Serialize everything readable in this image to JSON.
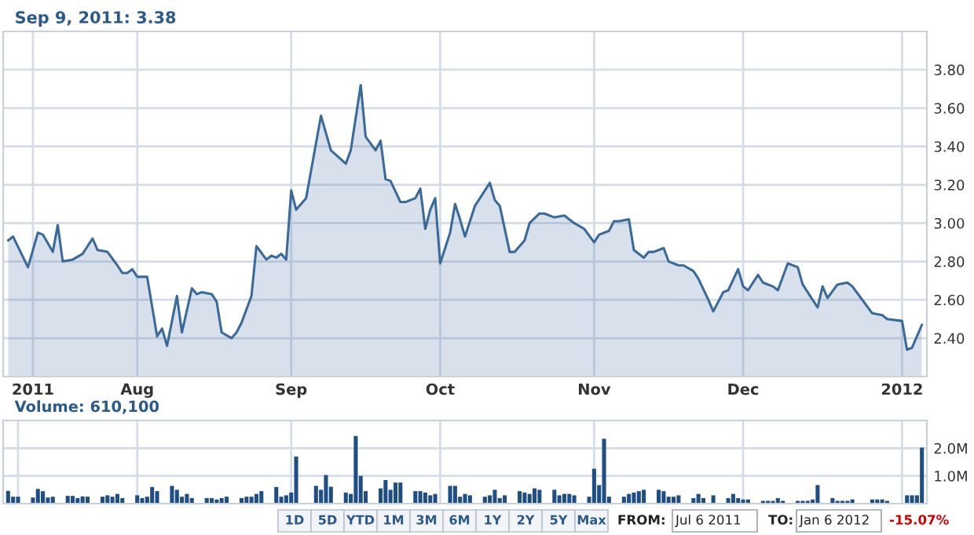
{
  "chart_data": [
    {
      "type": "area",
      "annotations": [
        "Sep 9, 2011: 3.38"
      ],
      "series": [
        {
          "color": "#3a6a9a",
          "x": [
            "2011-07-06",
            "2011-07-07",
            "2011-07-10",
            "2011-07-12",
            "2011-07-13",
            "2011-07-15",
            "2011-07-16",
            "2011-07-17",
            "2011-07-19",
            "2011-07-21",
            "2011-07-23",
            "2011-07-24",
            "2011-07-26",
            "2011-07-28",
            "2011-07-29",
            "2011-07-30",
            "2011-07-31",
            "2011-08-01",
            "2011-08-03",
            "2011-08-05",
            "2011-08-06",
            "2011-08-07",
            "2011-08-09",
            "2011-08-10",
            "2011-08-12",
            "2011-08-13",
            "2011-08-14",
            "2011-08-16",
            "2011-08-17",
            "2011-08-18",
            "2011-08-20",
            "2011-08-21",
            "2011-08-22",
            "2011-08-24",
            "2011-08-25",
            "2011-08-27",
            "2011-08-28",
            "2011-08-29",
            "2011-08-30",
            "2011-08-31",
            "2011-09-01",
            "2011-09-02",
            "2011-09-04",
            "2011-09-07",
            "2011-09-09",
            "2011-09-12",
            "2011-09-13",
            "2011-09-15",
            "2011-09-16",
            "2011-09-18",
            "2011-09-19",
            "2011-09-20",
            "2011-09-21",
            "2011-09-23",
            "2011-09-24",
            "2011-09-26",
            "2011-09-27",
            "2011-09-28",
            "2011-09-29",
            "2011-09-30",
            "2011-10-01",
            "2011-10-03",
            "2011-10-04",
            "2011-10-05",
            "2011-10-06",
            "2011-10-08",
            "2011-10-11",
            "2011-10-12",
            "2011-10-13",
            "2011-10-15",
            "2011-10-16",
            "2011-10-18",
            "2011-10-19",
            "2011-10-21",
            "2011-10-22",
            "2011-10-24",
            "2011-10-26",
            "2011-10-28",
            "2011-10-30",
            "2011-11-01",
            "2011-11-02",
            "2011-11-04",
            "2011-11-05",
            "2011-11-06",
            "2011-11-08",
            "2011-11-09",
            "2011-11-11",
            "2011-11-12",
            "2011-11-13",
            "2011-11-15",
            "2011-11-16",
            "2011-11-18",
            "2011-11-19",
            "2011-11-21",
            "2011-11-22",
            "2011-11-24",
            "2011-11-25",
            "2011-11-27",
            "2011-11-28",
            "2011-11-30",
            "2011-12-01",
            "2011-12-02",
            "2011-12-04",
            "2011-12-05",
            "2011-12-07",
            "2011-12-08",
            "2011-12-10",
            "2011-12-12",
            "2011-12-13",
            "2011-12-15",
            "2011-12-16",
            "2011-12-17",
            "2011-12-18",
            "2011-12-20",
            "2011-12-22",
            "2011-12-23",
            "2011-12-25",
            "2011-12-27",
            "2011-12-29",
            "2011-12-30",
            "2012-01-02",
            "2012-01-03",
            "2012-01-04",
            "2012-01-06"
          ],
          "values": [
            2.91,
            2.93,
            2.77,
            2.95,
            2.94,
            2.85,
            2.99,
            2.8,
            2.81,
            2.84,
            2.92,
            2.86,
            2.85,
            2.78,
            2.74,
            2.74,
            2.76,
            2.72,
            2.72,
            2.41,
            2.45,
            2.36,
            2.62,
            2.43,
            2.66,
            2.63,
            2.64,
            2.63,
            2.59,
            2.43,
            2.4,
            2.43,
            2.48,
            2.62,
            2.88,
            2.81,
            2.83,
            2.82,
            2.84,
            2.81,
            3.17,
            3.07,
            3.13,
            3.56,
            3.38,
            3.31,
            3.38,
            3.72,
            3.45,
            3.38,
            3.43,
            3.23,
            3.22,
            3.11,
            3.11,
            3.13,
            3.18,
            2.97,
            3.07,
            3.13,
            2.79,
            2.95,
            3.1,
            3.02,
            2.93,
            3.09,
            3.21,
            3.12,
            3.09,
            2.85,
            2.85,
            2.91,
            3.0,
            3.05,
            3.05,
            3.03,
            3.04,
            3.0,
            2.97,
            2.9,
            2.94,
            2.96,
            3.01,
            3.01,
            3.02,
            2.86,
            2.82,
            2.85,
            2.85,
            2.87,
            2.8,
            2.78,
            2.78,
            2.75,
            2.71,
            2.6,
            2.54,
            2.64,
            2.65,
            2.76,
            2.67,
            2.65,
            2.73,
            2.69,
            2.67,
            2.65,
            2.79,
            2.77,
            2.68,
            2.6,
            2.56,
            2.67,
            2.61,
            2.68,
            2.69,
            2.67,
            2.6,
            2.53,
            2.52,
            2.5,
            2.49,
            2.34,
            2.35,
            2.47
          ]
        }
      ],
      "xlim": [
        "2011-07-05",
        "2012-01-07"
      ],
      "xticks": [
        {
          "value": "2011-07-11",
          "label": "2011"
        },
        {
          "value": "2011-08-01",
          "label": "Aug"
        },
        {
          "value": "2011-09-01",
          "label": "Sep"
        },
        {
          "value": "2011-10-01",
          "label": "Oct"
        },
        {
          "value": "2011-11-01",
          "label": "Nov"
        },
        {
          "value": "2011-12-01",
          "label": "Dec"
        },
        {
          "value": "2012-01-02",
          "label": "2012"
        }
      ],
      "ylim": [
        2.2,
        4.0
      ],
      "yticks": [
        {
          "value": 2.4,
          "label": "2.40"
        },
        {
          "value": 2.6,
          "label": "2.60"
        },
        {
          "value": 2.8,
          "label": "2.80"
        },
        {
          "value": 3.0,
          "label": "3.00"
        },
        {
          "value": 3.2,
          "label": "3.20"
        },
        {
          "value": 3.4,
          "label": "3.40"
        },
        {
          "value": 3.6,
          "label": "3.60"
        },
        {
          "value": 3.8,
          "label": "3.80"
        }
      ],
      "grid": true,
      "legend": false
    },
    {
      "type": "bar",
      "title": "Volume: 610,100",
      "series": [
        {
          "color": "#1f4e85",
          "x": [
            "2011-07-06",
            "2011-07-07",
            "2011-07-08",
            "2011-07-11",
            "2011-07-12",
            "2011-07-13",
            "2011-07-14",
            "2011-07-15",
            "2011-07-18",
            "2011-07-19",
            "2011-07-20",
            "2011-07-21",
            "2011-07-22",
            "2011-07-25",
            "2011-07-26",
            "2011-07-27",
            "2011-07-28",
            "2011-07-29",
            "2011-08-01",
            "2011-08-02",
            "2011-08-03",
            "2011-08-04",
            "2011-08-05",
            "2011-08-08",
            "2011-08-09",
            "2011-08-10",
            "2011-08-11",
            "2011-08-12",
            "2011-08-15",
            "2011-08-16",
            "2011-08-17",
            "2011-08-18",
            "2011-08-19",
            "2011-08-22",
            "2011-08-23",
            "2011-08-24",
            "2011-08-25",
            "2011-08-26",
            "2011-08-29",
            "2011-08-30",
            "2011-08-31",
            "2011-09-01",
            "2011-09-02",
            "2011-09-06",
            "2011-09-07",
            "2011-09-08",
            "2011-09-09",
            "2011-09-12",
            "2011-09-13",
            "2011-09-14",
            "2011-09-15",
            "2011-09-16",
            "2011-09-19",
            "2011-09-20",
            "2011-09-21",
            "2011-09-22",
            "2011-09-23",
            "2011-09-26",
            "2011-09-27",
            "2011-09-28",
            "2011-09-29",
            "2011-09-30",
            "2011-10-03",
            "2011-10-04",
            "2011-10-05",
            "2011-10-06",
            "2011-10-07",
            "2011-10-10",
            "2011-10-11",
            "2011-10-12",
            "2011-10-13",
            "2011-10-14",
            "2011-10-17",
            "2011-10-18",
            "2011-10-19",
            "2011-10-20",
            "2011-10-21",
            "2011-10-24",
            "2011-10-25",
            "2011-10-26",
            "2011-10-27",
            "2011-10-28",
            "2011-10-31",
            "2011-11-01",
            "2011-11-02",
            "2011-11-03",
            "2011-11-04",
            "2011-11-07",
            "2011-11-08",
            "2011-11-09",
            "2011-11-10",
            "2011-11-11",
            "2011-11-14",
            "2011-11-15",
            "2011-11-16",
            "2011-11-17",
            "2011-11-18",
            "2011-11-21",
            "2011-11-22",
            "2011-11-23",
            "2011-11-25",
            "2011-11-28",
            "2011-11-29",
            "2011-11-30",
            "2011-12-01",
            "2011-12-02",
            "2011-12-05",
            "2011-12-06",
            "2011-12-07",
            "2011-12-08",
            "2011-12-09",
            "2011-12-12",
            "2011-12-13",
            "2011-12-14",
            "2011-12-15",
            "2011-12-16",
            "2011-12-19",
            "2011-12-20",
            "2011-12-21",
            "2011-12-22",
            "2011-12-23",
            "2011-12-27",
            "2011-12-28",
            "2011-12-29",
            "2011-12-30",
            "2012-01-03",
            "2012-01-04",
            "2012-01-05",
            "2012-01-06"
          ],
          "values": [
            0.46,
            0.25,
            0.25,
            0.22,
            0.53,
            0.45,
            0.22,
            0.25,
            0.28,
            0.28,
            0.2,
            0.26,
            0.25,
            0.25,
            0.3,
            0.25,
            0.35,
            0.2,
            0.3,
            0.2,
            0.25,
            0.6,
            0.45,
            0.64,
            0.5,
            0.25,
            0.35,
            0.2,
            0.2,
            0.2,
            0.15,
            0.2,
            0.25,
            0.2,
            0.25,
            0.25,
            0.35,
            0.45,
            0.6,
            0.25,
            0.3,
            0.4,
            1.7,
            0.64,
            0.5,
            1.03,
            0.61,
            0.4,
            0.35,
            2.44,
            1.0,
            0.45,
            0.55,
            0.85,
            0.5,
            0.76,
            0.76,
            0.45,
            0.45,
            0.4,
            0.3,
            0.35,
            0.64,
            0.64,
            0.25,
            0.35,
            0.3,
            0.25,
            0.3,
            0.5,
            0.2,
            0.3,
            0.45,
            0.4,
            0.35,
            0.55,
            0.5,
            0.5,
            0.3,
            0.35,
            0.35,
            0.3,
            0.25,
            1.26,
            0.67,
            2.34,
            0.25,
            0.25,
            0.35,
            0.4,
            0.45,
            0.5,
            0.5,
            0.45,
            0.25,
            0.25,
            0.3,
            0.2,
            0.35,
            0.2,
            0.3,
            0.2,
            0.35,
            0.2,
            0.15,
            0.15,
            0.1,
            0.1,
            0.1,
            0.2,
            0.1,
            0.1,
            0.1,
            0.1,
            0.15,
            0.67,
            0.2,
            0.1,
            0.1,
            0.1,
            0.15,
            0.15,
            0.15,
            0.15,
            0.1,
            0.3,
            0.3,
            0.3,
            2.02
          ]
        }
      ],
      "xlim": [
        "2011-07-05",
        "2012-01-07"
      ],
      "xticks": [
        {
          "value": "2011-07-08",
          "label": null
        },
        {
          "value": "2011-08-01",
          "label": null
        },
        {
          "value": "2011-09-01",
          "label": null
        },
        {
          "value": "2011-10-01",
          "label": null
        },
        {
          "value": "2011-11-01",
          "label": null
        },
        {
          "value": "2011-12-01",
          "label": null
        },
        {
          "value": "2012-01-02",
          "label": null
        }
      ],
      "ylim": [
        0,
        3.0
      ],
      "yticks": [
        {
          "value": 1.0,
          "label": "1.0M"
        },
        {
          "value": 2.0,
          "label": "2.0M"
        }
      ],
      "tick_labels": "y",
      "grid": true,
      "legend": false
    },
    {
      "type": "other",
      "annotations": [
        "1D",
        "5D",
        "YTD",
        "1M",
        "3M",
        "6M",
        "1Y",
        "2Y",
        "5Y",
        "Max",
        "FROM:",
        "Jul 6 2011",
        "TO:",
        "Jan 6 2012",
        "-15.07%"
      ]
    }
  ]
}
